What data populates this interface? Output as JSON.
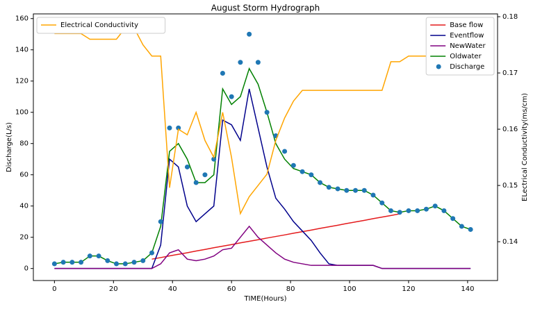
{
  "chart_data": {
    "type": "line",
    "title": "August Storm Hydrograph",
    "x_label": "TIME(Hours)",
    "y_label": "Discharge(L/s)",
    "y2_label": "ELectrical Conductivity(ms/cm)",
    "x": [
      0,
      3,
      6,
      9,
      12,
      15,
      18,
      21,
      24,
      27,
      30,
      33,
      36,
      39,
      42,
      45,
      48,
      51,
      54,
      57,
      60,
      63,
      66,
      69,
      72,
      75,
      78,
      81,
      84,
      87,
      90,
      93,
      96,
      99,
      102,
      105,
      108,
      111,
      114,
      117,
      120,
      123,
      126,
      129,
      132,
      135,
      138,
      141
    ],
    "xlim": [
      -7.15,
      150.15
    ],
    "xticks": [
      0,
      20,
      40,
      60,
      80,
      100,
      120,
      140
    ],
    "ylim": [
      -7.7,
      163
    ],
    "yticks": [
      0,
      20,
      40,
      60,
      80,
      100,
      120,
      140,
      160
    ],
    "y2lim": [
      0.1331,
      0.1805
    ],
    "y2ticks": [
      0.14,
      0.15,
      0.16,
      0.17,
      0.18
    ],
    "grid": false,
    "legend": "upper right",
    "y2_legend": "upper left",
    "series": [
      {
        "name": "Base flow",
        "type": "line",
        "color": "#e41a1c",
        "values": [
          null,
          null,
          null,
          null,
          null,
          null,
          null,
          null,
          null,
          null,
          null,
          6.0,
          7.0,
          8.1,
          9.1,
          10.1,
          11.2,
          12.2,
          13.3,
          14.3,
          15.3,
          16.4,
          17.4,
          18.4,
          19.5,
          20.5,
          21.5,
          22.6,
          23.6,
          24.6,
          25.7,
          26.7,
          27.7,
          28.8,
          29.8,
          30.8,
          31.9,
          32.9,
          33.9,
          35.0,
          null,
          null,
          null,
          null,
          null,
          null,
          null,
          null
        ]
      },
      {
        "name": "Eventflow",
        "type": "line",
        "color": "#00008b",
        "values": [
          0,
          0,
          0,
          0,
          0,
          0,
          0,
          0,
          0,
          0,
          0,
          0,
          15,
          70,
          65,
          40,
          30,
          35,
          40,
          95,
          92,
          82,
          115,
          90,
          65,
          45,
          38,
          30,
          24,
          18,
          10,
          3,
          2,
          2,
          2,
          2,
          2,
          0,
          0,
          0,
          0,
          0,
          0,
          0,
          0,
          0,
          0,
          0
        ]
      },
      {
        "name": "NewWater",
        "type": "line",
        "color": "#800080",
        "values": [
          0,
          0,
          0,
          0,
          0,
          0,
          0,
          0,
          0,
          0,
          0,
          0,
          3,
          10,
          12,
          6,
          5,
          6,
          8,
          12,
          13,
          20,
          27,
          20,
          15,
          10,
          6,
          4,
          3,
          2,
          2,
          2,
          2,
          2,
          2,
          2,
          2,
          0,
          0,
          0,
          0,
          0,
          0,
          0,
          0,
          0,
          0,
          0
        ]
      },
      {
        "name": "Oldwater",
        "type": "line",
        "color": "#008000",
        "values": [
          3,
          4,
          4,
          4,
          8,
          8,
          5,
          3,
          3,
          4,
          5,
          10,
          27,
          75,
          80,
          70,
          55,
          55,
          60,
          115,
          105,
          110,
          128,
          118,
          100,
          80,
          70,
          64,
          62,
          60,
          55,
          52,
          51,
          50,
          50,
          50,
          47,
          42,
          37,
          36,
          37,
          37,
          38,
          40,
          37,
          32,
          27,
          25
        ]
      },
      {
        "name": "Discharge",
        "type": "scatter",
        "color": "#1f77b4",
        "values": [
          3,
          4,
          4,
          4,
          8,
          8,
          5,
          3,
          3,
          4,
          5,
          10,
          30,
          90,
          90,
          65,
          55,
          60,
          70,
          125,
          110,
          132,
          150,
          132,
          100,
          85,
          75,
          66,
          62,
          60,
          55,
          52,
          51,
          50,
          50,
          50,
          47,
          42,
          37,
          36,
          37,
          37,
          38,
          40,
          37,
          32,
          27,
          25
        ]
      },
      {
        "name": "Electrical Conductivity",
        "type": "line",
        "axis": "y2",
        "color": "#ffa500",
        "values": [
          0.177,
          0.177,
          0.177,
          0.177,
          0.176,
          0.176,
          0.176,
          0.176,
          0.178,
          0.178,
          0.175,
          0.173,
          0.173,
          0.1496,
          0.16,
          0.159,
          0.163,
          0.158,
          0.155,
          0.163,
          0.155,
          0.145,
          0.148,
          0.15,
          0.152,
          0.158,
          0.162,
          0.165,
          0.1669,
          0.1669,
          0.1669,
          0.1669,
          0.1669,
          0.1669,
          0.1669,
          0.1669,
          0.1669,
          0.1669,
          0.172,
          0.172,
          0.173,
          0.173,
          0.173,
          0.173,
          0.173,
          0.173,
          0.174,
          0.174
        ]
      }
    ]
  }
}
